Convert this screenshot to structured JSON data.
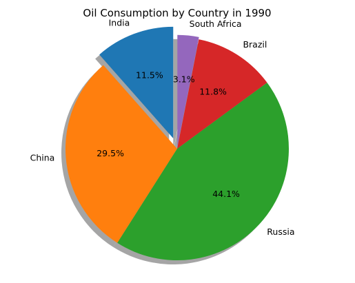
{
  "chart_data": {
    "type": "pie",
    "title": "Oil Consumption by Country in 1990",
    "categories": [
      "India",
      "China",
      "Russia",
      "Brazil",
      "South Africa"
    ],
    "values": [
      11.5,
      29.5,
      44.1,
      11.8,
      3.1
    ],
    "labels": [
      "11.5%",
      "29.5%",
      "44.1%",
      "11.8%",
      "3.1%"
    ],
    "colors": [
      "#1f77b4",
      "#ff7f0e",
      "#2ca02c",
      "#d62728",
      "#9467bd"
    ],
    "explode": [
      0.1,
      0,
      0,
      0,
      0.02
    ],
    "start_angle_deg": 90,
    "shadow": true
  }
}
